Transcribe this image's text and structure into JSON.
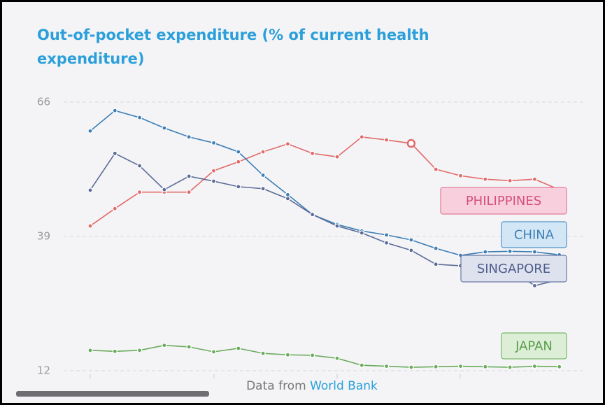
{
  "chart_data": {
    "type": "line",
    "title": [
      "Out-of-pocket expenditure (% of current health",
      "expenditure)"
    ],
    "ylim": [
      12,
      66
    ],
    "yticks": [
      12,
      39,
      66
    ],
    "grid": true,
    "series": [
      {
        "name": "PHILIPPINES",
        "color": "#e26a6a",
        "values": [
          41.1,
          44.6,
          47.9,
          47.9,
          47.9,
          52.2,
          54.0,
          56.0,
          57.6,
          55.7,
          55.0,
          59.0,
          58.4,
          57.7,
          52.5,
          51.2,
          50.5,
          50.2,
          50.5,
          48.4
        ]
      },
      {
        "name": "CHINA",
        "color": "#3d7fb6",
        "values": [
          60.2,
          64.3,
          62.9,
          60.8,
          59.0,
          57.8,
          56.0,
          51.3,
          47.4,
          43.4,
          41.4,
          40.1,
          39.3,
          38.3,
          36.6,
          35.2,
          35.9,
          36.0,
          35.9,
          35.3
        ]
      },
      {
        "name": "SINGAPORE",
        "color": "#5b6c98",
        "values": [
          48.3,
          55.7,
          53.2,
          48.4,
          51.1,
          50.1,
          49.0,
          48.6,
          46.6,
          43.4,
          41.1,
          39.7,
          37.7,
          36.2,
          33.4,
          33.1,
          32.8,
          32.4,
          29.1,
          30.3
        ]
      },
      {
        "name": "JAPAN",
        "color": "#6aab5c",
        "values": [
          16.1,
          15.9,
          16.1,
          17.1,
          16.8,
          15.8,
          16.5,
          15.5,
          15.2,
          15.1,
          14.5,
          13.1,
          12.9,
          12.7,
          12.8,
          12.9,
          12.8,
          12.7,
          12.9,
          12.8
        ]
      }
    ],
    "footer": {
      "text": "Data from",
      "source": "World Bank"
    }
  }
}
